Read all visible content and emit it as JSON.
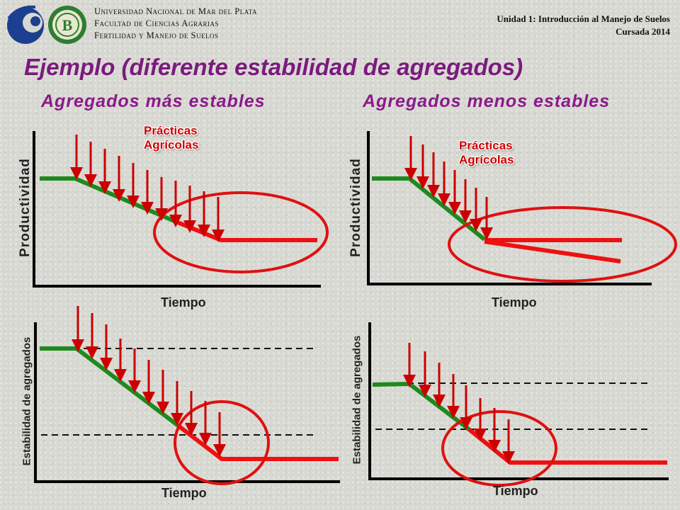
{
  "header": {
    "university_line1": "Universidad Nacional de Mar del Plata",
    "university_line2": "Facultad de Ciencias Agrarias",
    "university_line3": "Fertilidad y Manejo de Suelos",
    "course_line1": "Unidad 1: Introducción al Manejo de Suelos",
    "course_line2": "Cursada 2014",
    "logo_letter": "B"
  },
  "slide": {
    "title": "Ejemplo (diferente estabilidad de agregados)"
  },
  "left": {
    "title": "Agregados más estables",
    "practices_line1": "Prácticas",
    "practices_line2": "Agrícolas",
    "top_ylabel": "Productividad",
    "top_xlabel": "Tiempo",
    "bottom_ylabel": "Estabilidad de agregados",
    "bottom_xlabel": "Tiempo"
  },
  "right": {
    "title": "Agregados menos estables",
    "practices_line1": "Prácticas",
    "practices_line2": "Agrícolas",
    "top_ylabel": "Productividad",
    "top_xlabel": "Tiempo",
    "bottom_ylabel": "Estabilidad de agregados",
    "bottom_xlabel": "Tiempo"
  },
  "colors": {
    "title": "#7a1a7e",
    "green_line": "#1e8a1e",
    "red_line": "#ee1111",
    "arrow": "#cc0000",
    "ellipse": "#e01010",
    "logo_blue": "#1d3f8f",
    "logo_green": "#2e7d32"
  }
}
